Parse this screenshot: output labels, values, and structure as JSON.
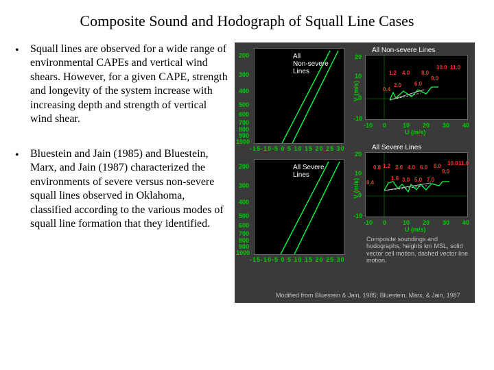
{
  "title": "Composite Sound and Hodograph of Squall Line Cases",
  "bullets": {
    "b1": "Squall lines are observed for a wide range of environmental CAPEs and vertical wind shears. However, for a given CAPE, strength and longevity of the system increase with increasing depth and strength of vertical wind shear.",
    "b2": "Bluestein and Jain (1985) and Bluestein, Marx, and Jain (1987) characterized the environments of severe versus non-severe squall lines observed in Oklahoma, classified according to the various modes of squall line formation that they identified."
  },
  "figure": {
    "background_color": "#3a3a3a",
    "panel_bg": "#000000",
    "axis_color": "#00ff40",
    "text_white": "#ffffff",
    "hodo_label_color": "#ff3030",
    "panels": {
      "sounding_nonsevere": {
        "label": "All\nNon-severe\nLines",
        "y_ticks": [
          "200",
          "300",
          "400",
          "500",
          "600",
          "700",
          "800",
          "900",
          "1000"
        ],
        "x_ticks": "-15-10-5 0 5 10 15 20 25 30",
        "line_color": "#00ff40"
      },
      "sounding_severe": {
        "label": "All Severe\nLines",
        "y_ticks": [
          "200",
          "300",
          "400",
          "500",
          "600",
          "700",
          "800",
          "900",
          "1000"
        ],
        "x_ticks": "-15-10-5 0 5 10 15 20 25 30",
        "line_color": "#00ff40"
      },
      "hodo_nonsevere": {
        "label": "All Non-severe Lines",
        "ylabel": "V (m/s)",
        "xlabel": "U (m/s)",
        "x_ticks": [
          "-10",
          "0",
          "10",
          "20",
          "30",
          "40"
        ],
        "y_ticks": [
          "20",
          "10",
          "0",
          "-10"
        ],
        "line_color": "#00ff40",
        "points": [
          {
            "lbl": "0.4",
            "x": 4,
            "y": -1
          },
          {
            "lbl": "1.2",
            "x": 6,
            "y": 5
          },
          {
            "lbl": "2.0",
            "x": 8,
            "y": 1
          },
          {
            "lbl": "4.0",
            "x": 12,
            "y": 5
          },
          {
            "lbl": "6.0",
            "x": 17,
            "y": 2
          },
          {
            "lbl": "8.0",
            "x": 20,
            "y": 6
          },
          {
            "lbl": "9.0",
            "x": 24,
            "y": 4
          },
          {
            "lbl": "10.0",
            "x": 27,
            "y": 8
          },
          {
            "lbl": "11.0",
            "x": 30,
            "y": 8
          }
        ]
      },
      "hodo_severe": {
        "label": "All Severe Lines",
        "ylabel": "V (m/s)",
        "xlabel": "U (m/s)",
        "x_ticks": [
          "-10",
          "0",
          "10",
          "20",
          "30",
          "40"
        ],
        "y_ticks": [
          "20",
          "10",
          "0",
          "-10"
        ],
        "line_color": "#00ff40",
        "points": [
          {
            "lbl": "0.4",
            "x": 0,
            "y": 4
          },
          {
            "lbl": "0.8",
            "x": 3,
            "y": 9
          },
          {
            "lbl": "1.2",
            "x": 6,
            "y": 10
          },
          {
            "lbl": "1.6",
            "x": 9,
            "y": 5
          },
          {
            "lbl": "2.0",
            "x": 11,
            "y": 8
          },
          {
            "lbl": "3.0",
            "x": 14,
            "y": 3
          },
          {
            "lbl": "4.0",
            "x": 15,
            "y": 8
          },
          {
            "lbl": "5.0",
            "x": 18,
            "y": 4
          },
          {
            "lbl": "6.0",
            "x": 20,
            "y": 8
          },
          {
            "lbl": "7.0",
            "x": 23,
            "y": 4
          },
          {
            "lbl": "8.0",
            "x": 25,
            "y": 9
          },
          {
            "lbl": "9.0",
            "x": 29,
            "y": 7
          },
          {
            "lbl": "10.0",
            "x": 30,
            "y": 10
          },
          {
            "lbl": "11.0",
            "x": 34,
            "y": 10
          }
        ]
      }
    },
    "footer_desc": "Composite soundings and hodographs, heights km MSL, solid vector cell motion, dashed vector line motion.",
    "footer_credit": "Modified from Bluestein & Jain, 1985; Bluestein, Marx, & Jain, 1987"
  }
}
